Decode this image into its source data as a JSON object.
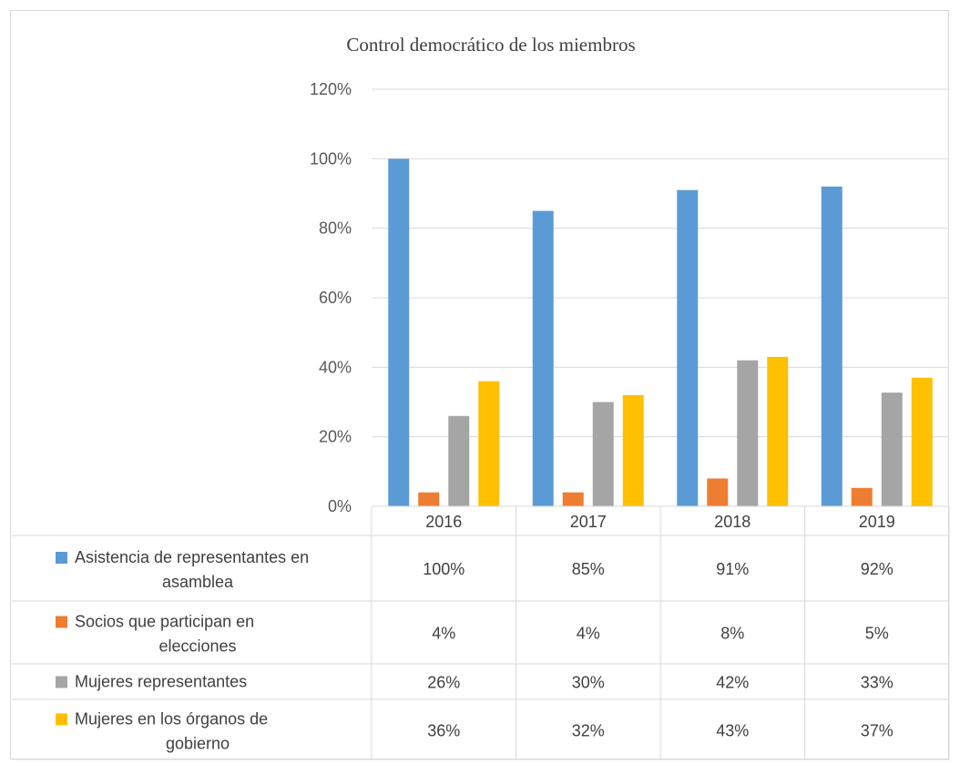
{
  "chart_data": {
    "type": "bar",
    "title": "Control democrático de los miembros",
    "categories": [
      "2016",
      "2017",
      "2018",
      "2019"
    ],
    "ylim": [
      0,
      1.2
    ],
    "yticks": [
      "0%",
      "20%",
      "40%",
      "60%",
      "80%",
      "100%",
      "120%"
    ],
    "grid": true,
    "legend": "data table below chart",
    "series": [
      {
        "name_lines": [
          "Asistencia de representantes en",
          "asamblea"
        ],
        "color": "#5B9BD5",
        "values": [
          1.0,
          0.85,
          0.91,
          0.92
        ],
        "labels": [
          "100%",
          "85%",
          "91%",
          "92%"
        ]
      },
      {
        "name_lines": [
          "Socios que participan  en",
          "elecciones"
        ],
        "color": "#ED7D31",
        "values": [
          0.04,
          0.04,
          0.08,
          0.053
        ],
        "labels": [
          "4%",
          "4%",
          "8%",
          "5%"
        ]
      },
      {
        "name_lines": [
          "Mujeres representantes"
        ],
        "color": "#A5A5A5",
        "values": [
          0.26,
          0.3,
          0.42,
          0.327
        ],
        "labels": [
          "26%",
          "30%",
          "42%",
          "33%"
        ]
      },
      {
        "name_lines": [
          "Mujeres en los órganos de",
          "gobierno"
        ],
        "color": "#FFC000",
        "values": [
          0.36,
          0.32,
          0.43,
          0.37
        ],
        "labels": [
          "36%",
          "32%",
          "43%",
          "37%"
        ]
      }
    ]
  }
}
